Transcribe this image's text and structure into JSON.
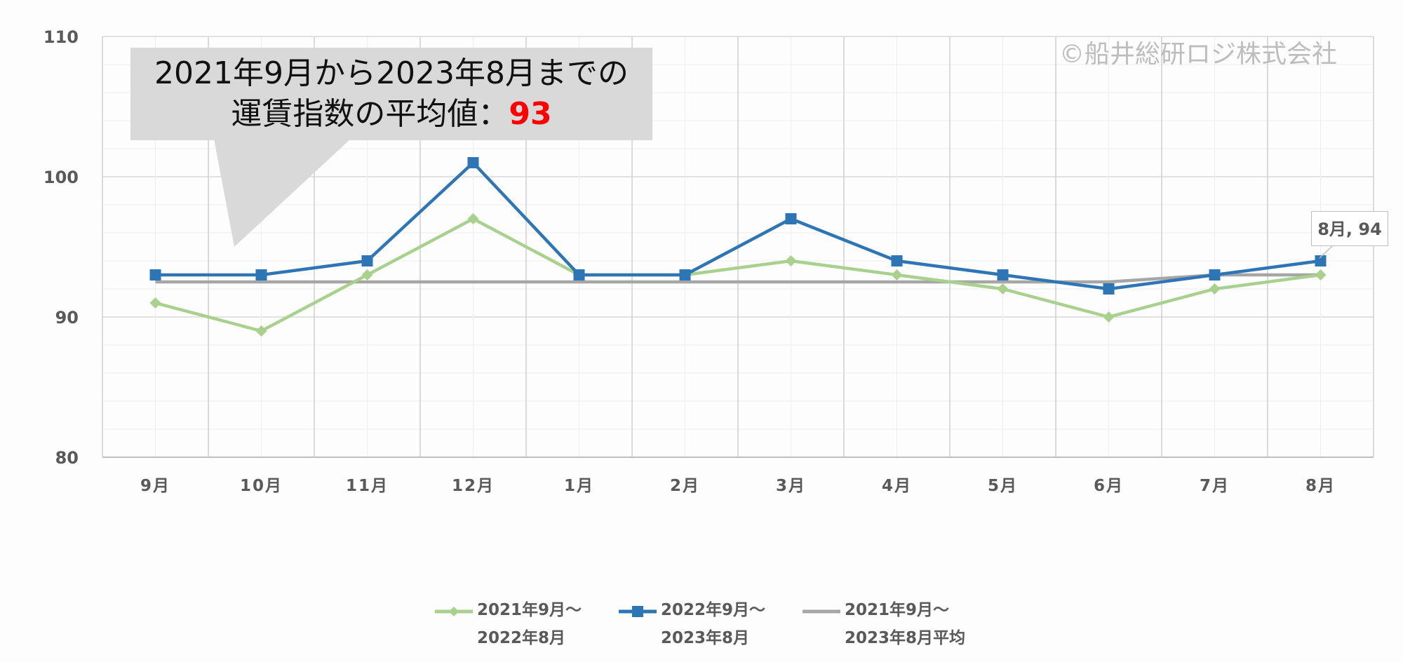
{
  "callout": {
    "line1": "2021年9月から2023年8月までの",
    "line2_prefix": "運賃指数の平均値：",
    "line2_value": "93"
  },
  "watermark": "©船井総研ロジ株式会社",
  "data_label": "8月, 94",
  "legend": [
    {
      "line1": "2021年9月～",
      "line2": "2022年8月"
    },
    {
      "line1": "2022年9月～",
      "line2": "2023年8月"
    },
    {
      "line1": "2021年9月～",
      "line2": "2023年8月平均"
    }
  ],
  "colors": {
    "series1": "#a9d18e",
    "series2": "#2e75b6",
    "average": "#a6a6a6",
    "highlight": "#ff0000"
  },
  "chart_data": {
    "type": "line",
    "categories": [
      "9月",
      "10月",
      "11月",
      "12月",
      "1月",
      "2月",
      "3月",
      "4月",
      "5月",
      "6月",
      "7月",
      "8月"
    ],
    "ylim": [
      80,
      110
    ],
    "yticks": [
      80,
      90,
      100,
      110
    ],
    "grid": true,
    "legend_position": "bottom",
    "series": [
      {
        "name": "2021年9月～2022年8月",
        "values": [
          91,
          89,
          93,
          97,
          93,
          93,
          94,
          93,
          92,
          90,
          92,
          93
        ],
        "marker": "diamond"
      },
      {
        "name": "2022年9月～2023年8月",
        "values": [
          93,
          93,
          94,
          101,
          93,
          93,
          97,
          94,
          93,
          92,
          93,
          94
        ],
        "marker": "square"
      },
      {
        "name": "2021年9月～2023年8月平均",
        "values": [
          92.5,
          92.5,
          92.5,
          92.5,
          92.5,
          92.5,
          92.5,
          92.5,
          92.5,
          92.5,
          93,
          93
        ],
        "marker": "none"
      }
    ],
    "annotations": [
      {
        "category": "8月",
        "series": "2022年9月～2023年8月",
        "text": "8月, 94"
      }
    ]
  }
}
